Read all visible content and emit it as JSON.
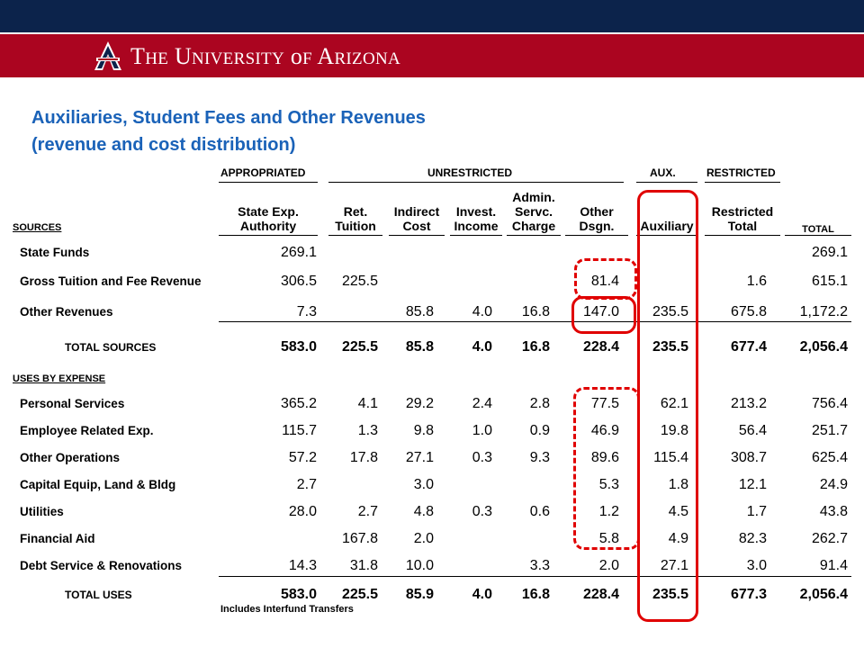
{
  "header": {
    "university": "The University of Arizona"
  },
  "title": {
    "line1": "Auxiliaries, Student Fees and Other Revenues",
    "line2": "(revenue and cost distribution)"
  },
  "groups": {
    "appropriated": "APPROPRIATED",
    "unrestricted": "UNRESTRICTED",
    "aux": "AUX.",
    "restricted": "RESTRICTED"
  },
  "columns": {
    "state": [
      "State Exp.",
      "Authority"
    ],
    "ret": [
      "Ret.",
      "Tuition"
    ],
    "indirect": [
      "Indirect",
      "Cost"
    ],
    "invest": [
      "Invest.",
      "Income"
    ],
    "admin": [
      "Admin.",
      "Servc.",
      "Charge"
    ],
    "other": [
      "Other",
      "Dsgn."
    ],
    "aux": [
      "Auxiliary"
    ],
    "restricted": [
      "Restricted",
      "Total"
    ],
    "total": [
      "TOTAL"
    ]
  },
  "sections": {
    "sources": "SOURCES",
    "uses": "USES BY EXPENSE"
  },
  "sources_rows": [
    {
      "label": "State Funds",
      "state": "269.1",
      "ret": "",
      "indirect": "",
      "invest": "",
      "admin": "",
      "other": "",
      "aux": "",
      "restricted": "",
      "total": "269.1"
    },
    {
      "label": "Gross Tuition and Fee Revenue",
      "state": "306.5",
      "ret": "225.5",
      "indirect": "",
      "invest": "",
      "admin": "",
      "other": "81.4",
      "aux": "",
      "restricted": "1.6",
      "total": "615.1"
    },
    {
      "label": "Other Revenues",
      "state": "7.3",
      "ret": "",
      "indirect": "85.8",
      "invest": "4.0",
      "admin": "16.8",
      "other": "147.0",
      "aux": "235.5",
      "restricted": "675.8",
      "total": "1,172.2"
    }
  ],
  "total_sources": {
    "label": "TOTAL SOURCES",
    "state": "583.0",
    "ret": "225.5",
    "indirect": "85.8",
    "invest": "4.0",
    "admin": "16.8",
    "other": "228.4",
    "aux": "235.5",
    "restricted": "677.4",
    "total": "2,056.4"
  },
  "uses_rows": [
    {
      "label": "Personal Services",
      "state": "365.2",
      "ret": "4.1",
      "indirect": "29.2",
      "invest": "2.4",
      "admin": "2.8",
      "other": "77.5",
      "aux": "62.1",
      "restricted": "213.2",
      "total": "756.4"
    },
    {
      "label": "Employee Related Exp.",
      "state": "115.7",
      "ret": "1.3",
      "indirect": "9.8",
      "invest": "1.0",
      "admin": "0.9",
      "other": "46.9",
      "aux": "19.8",
      "restricted": "56.4",
      "total": "251.7"
    },
    {
      "label": "Other Operations",
      "state": "57.2",
      "ret": "17.8",
      "indirect": "27.1",
      "invest": "0.3",
      "admin": "9.3",
      "other": "89.6",
      "aux": "115.4",
      "restricted": "308.7",
      "total": "625.4"
    },
    {
      "label": "Capital Equip, Land & Bldg",
      "state": "2.7",
      "ret": "",
      "indirect": "3.0",
      "invest": "",
      "admin": "",
      "other": "5.3",
      "aux": "1.8",
      "restricted": "12.1",
      "total": "24.9"
    },
    {
      "label": "Utilities",
      "state": "28.0",
      "ret": "2.7",
      "indirect": "4.8",
      "invest": "0.3",
      "admin": "0.6",
      "other": "1.2",
      "aux": "4.5",
      "restricted": "1.7",
      "total": "43.8"
    },
    {
      "label": "Financial Aid",
      "state": "",
      "ret": "167.8",
      "indirect": "2.0",
      "invest": "",
      "admin": "",
      "other": "5.8",
      "aux": "4.9",
      "restricted": "82.3",
      "total": "262.7"
    },
    {
      "label": "Debt Service & Renovations",
      "state": "14.3",
      "ret": "31.8",
      "indirect": "10.0",
      "invest": "",
      "admin": "3.3",
      "other": "2.0",
      "aux": "27.1",
      "restricted": "3.0",
      "total": "91.4"
    }
  ],
  "total_uses": {
    "label": "TOTAL USES",
    "state": "583.0",
    "ret": "225.5",
    "indirect": "85.9",
    "invest": "4.0",
    "admin": "16.8",
    "other": "228.4",
    "aux": "235.5",
    "restricted": "677.3",
    "total": "2,056.4"
  },
  "footnote": "Includes Interfund Transfers",
  "colors": {
    "navy": "#0c234b",
    "red": "#ab0520",
    "title_blue": "#1a62b8",
    "highlight": "#e00000"
  }
}
